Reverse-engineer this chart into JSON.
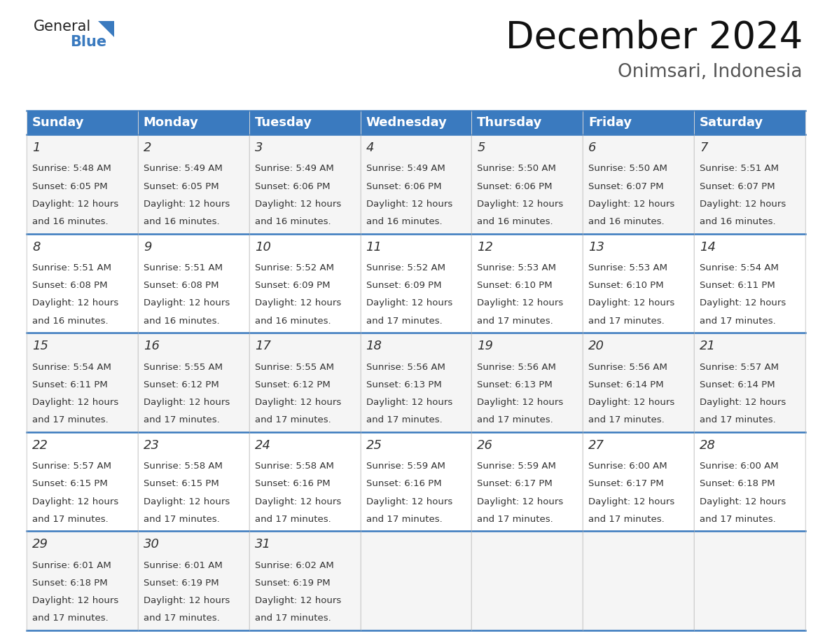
{
  "title": "December 2024",
  "subtitle": "Onimsari, Indonesia",
  "header_color": "#3a7abf",
  "header_text_color": "#ffffff",
  "border_color": "#3a7abf",
  "day_headers": [
    "Sunday",
    "Monday",
    "Tuesday",
    "Wednesday",
    "Thursday",
    "Friday",
    "Saturday"
  ],
  "title_fontsize": 38,
  "subtitle_fontsize": 19,
  "header_fontsize": 13,
  "day_num_fontsize": 13,
  "cell_fontsize": 9.5,
  "weeks": [
    [
      {
        "day": 1,
        "sunrise": "5:48 AM",
        "sunset": "6:05 PM",
        "daylight": "12 hours and 16 minutes"
      },
      {
        "day": 2,
        "sunrise": "5:49 AM",
        "sunset": "6:05 PM",
        "daylight": "12 hours and 16 minutes"
      },
      {
        "day": 3,
        "sunrise": "5:49 AM",
        "sunset": "6:06 PM",
        "daylight": "12 hours and 16 minutes"
      },
      {
        "day": 4,
        "sunrise": "5:49 AM",
        "sunset": "6:06 PM",
        "daylight": "12 hours and 16 minutes"
      },
      {
        "day": 5,
        "sunrise": "5:50 AM",
        "sunset": "6:06 PM",
        "daylight": "12 hours and 16 minutes"
      },
      {
        "day": 6,
        "sunrise": "5:50 AM",
        "sunset": "6:07 PM",
        "daylight": "12 hours and 16 minutes"
      },
      {
        "day": 7,
        "sunrise": "5:51 AM",
        "sunset": "6:07 PM",
        "daylight": "12 hours and 16 minutes"
      }
    ],
    [
      {
        "day": 8,
        "sunrise": "5:51 AM",
        "sunset": "6:08 PM",
        "daylight": "12 hours and 16 minutes"
      },
      {
        "day": 9,
        "sunrise": "5:51 AM",
        "sunset": "6:08 PM",
        "daylight": "12 hours and 16 minutes"
      },
      {
        "day": 10,
        "sunrise": "5:52 AM",
        "sunset": "6:09 PM",
        "daylight": "12 hours and 16 minutes"
      },
      {
        "day": 11,
        "sunrise": "5:52 AM",
        "sunset": "6:09 PM",
        "daylight": "12 hours and 17 minutes"
      },
      {
        "day": 12,
        "sunrise": "5:53 AM",
        "sunset": "6:10 PM",
        "daylight": "12 hours and 17 minutes"
      },
      {
        "day": 13,
        "sunrise": "5:53 AM",
        "sunset": "6:10 PM",
        "daylight": "12 hours and 17 minutes"
      },
      {
        "day": 14,
        "sunrise": "5:54 AM",
        "sunset": "6:11 PM",
        "daylight": "12 hours and 17 minutes"
      }
    ],
    [
      {
        "day": 15,
        "sunrise": "5:54 AM",
        "sunset": "6:11 PM",
        "daylight": "12 hours and 17 minutes"
      },
      {
        "day": 16,
        "sunrise": "5:55 AM",
        "sunset": "6:12 PM",
        "daylight": "12 hours and 17 minutes"
      },
      {
        "day": 17,
        "sunrise": "5:55 AM",
        "sunset": "6:12 PM",
        "daylight": "12 hours and 17 minutes"
      },
      {
        "day": 18,
        "sunrise": "5:56 AM",
        "sunset": "6:13 PM",
        "daylight": "12 hours and 17 minutes"
      },
      {
        "day": 19,
        "sunrise": "5:56 AM",
        "sunset": "6:13 PM",
        "daylight": "12 hours and 17 minutes"
      },
      {
        "day": 20,
        "sunrise": "5:56 AM",
        "sunset": "6:14 PM",
        "daylight": "12 hours and 17 minutes"
      },
      {
        "day": 21,
        "sunrise": "5:57 AM",
        "sunset": "6:14 PM",
        "daylight": "12 hours and 17 minutes"
      }
    ],
    [
      {
        "day": 22,
        "sunrise": "5:57 AM",
        "sunset": "6:15 PM",
        "daylight": "12 hours and 17 minutes"
      },
      {
        "day": 23,
        "sunrise": "5:58 AM",
        "sunset": "6:15 PM",
        "daylight": "12 hours and 17 minutes"
      },
      {
        "day": 24,
        "sunrise": "5:58 AM",
        "sunset": "6:16 PM",
        "daylight": "12 hours and 17 minutes"
      },
      {
        "day": 25,
        "sunrise": "5:59 AM",
        "sunset": "6:16 PM",
        "daylight": "12 hours and 17 minutes"
      },
      {
        "day": 26,
        "sunrise": "5:59 AM",
        "sunset": "6:17 PM",
        "daylight": "12 hours and 17 minutes"
      },
      {
        "day": 27,
        "sunrise": "6:00 AM",
        "sunset": "6:17 PM",
        "daylight": "12 hours and 17 minutes"
      },
      {
        "day": 28,
        "sunrise": "6:00 AM",
        "sunset": "6:18 PM",
        "daylight": "12 hours and 17 minutes"
      }
    ],
    [
      {
        "day": 29,
        "sunrise": "6:01 AM",
        "sunset": "6:18 PM",
        "daylight": "12 hours and 17 minutes"
      },
      {
        "day": 30,
        "sunrise": "6:01 AM",
        "sunset": "6:19 PM",
        "daylight": "12 hours and 17 minutes"
      },
      {
        "day": 31,
        "sunrise": "6:02 AM",
        "sunset": "6:19 PM",
        "daylight": "12 hours and 17 minutes"
      },
      null,
      null,
      null,
      null
    ]
  ]
}
